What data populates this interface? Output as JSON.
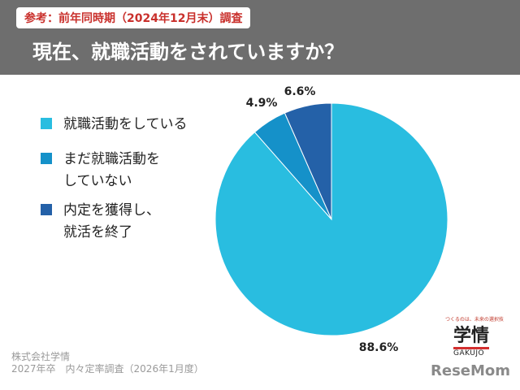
{
  "header": {
    "badge": "参考：前年同時期（2024年12月末）調査",
    "question": "現在、就職活動をされていますか？"
  },
  "chart_data": {
    "type": "pie",
    "title": "",
    "start_angle_deg": 0,
    "direction": "clockwise",
    "slices": [
      {
        "label": "就職活動をしている",
        "value": 88.6,
        "display": "88.6%",
        "color": "#29bde0"
      },
      {
        "label": "まだ就職活動をしていない",
        "value": 4.9,
        "display": "4.9%",
        "color": "#1591c9"
      },
      {
        "label": "内定を獲得し、就活を終了",
        "value": 6.6,
        "display": "6.6%",
        "color": "#2461a8"
      }
    ],
    "legend": {
      "position": "left",
      "items": [
        {
          "label": "就職活動をしている",
          "color": "#29bde0"
        },
        {
          "label": "まだ就職活動を\nしていない",
          "color": "#1591c9"
        },
        {
          "label": "内定を獲得し、\n就活を終了",
          "color": "#2461a8"
        }
      ]
    }
  },
  "footer": {
    "company": "株式会社学情",
    "survey": "2027年卒　内々定率調査（2026年1月度）"
  },
  "logo": {
    "tagline": "つくるのは、未来の選択技",
    "mark": "学情",
    "sub": "GAKUJO"
  },
  "watermark": "ReseMom"
}
